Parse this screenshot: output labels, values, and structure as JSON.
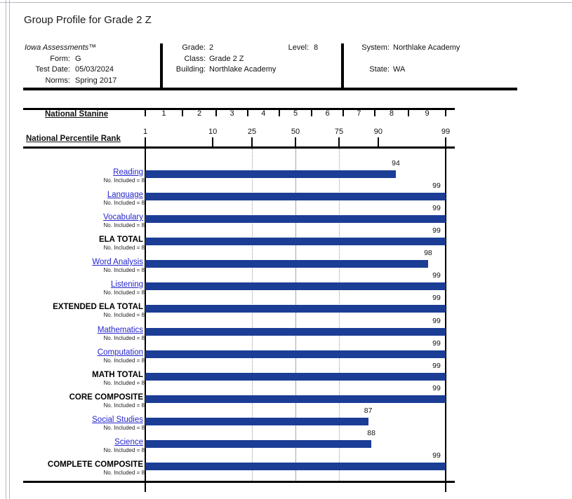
{
  "title": "Group Profile for Grade 2 Z",
  "info": {
    "product": "Iowa Assessments™",
    "form_label": "Form:",
    "form_value": "G",
    "test_date_label": "Test Date:",
    "test_date_value": "05/03/2024",
    "norms_label": "Norms:",
    "norms_value": "Spring 2017",
    "grade_label": "Grade:",
    "grade_value": "2",
    "level_label": "Level:",
    "level_value": "8",
    "class_label": "Class:",
    "class_value": "Grade 2 Z",
    "building_label": "Building:",
    "building_value": "Northlake Academy",
    "system_label": "System:",
    "system_value": "Northlake Academy",
    "state_label": "State:",
    "state_value": "WA"
  },
  "scales": {
    "stanine_label": "National Stanine",
    "stanine_numbers": [
      1,
      2,
      3,
      4,
      5,
      6,
      7,
      8,
      9
    ],
    "stanine_tick_percentiles": [
      1,
      4,
      11,
      23,
      40,
      60,
      77,
      89,
      96,
      99
    ],
    "percentile_label": "National Percentile Rank",
    "percentile_ticks": [
      1,
      10,
      25,
      50,
      75,
      90,
      99
    ]
  },
  "gridlines": [
    {
      "p": 25,
      "style": "dotted"
    },
    {
      "p": 50,
      "style": "solid"
    },
    {
      "p": 75,
      "style": "dotted"
    }
  ],
  "colors": {
    "bar": "#1b3d96",
    "link": "#2525cc",
    "grid": "#999999"
  },
  "chart_data": {
    "type": "bar",
    "orientation": "horizontal",
    "title": "Group Profile for Grade 2 Z",
    "xlabel": "National Percentile Rank",
    "x_scale": "normal-probability (probit)",
    "x_ticks": [
      1,
      10,
      25,
      50,
      75,
      90,
      99
    ],
    "xlim": [
      1,
      99
    ],
    "stanine_boundaries_percentile": [
      1,
      4,
      11,
      23,
      40,
      60,
      77,
      89,
      96,
      99
    ],
    "included_prefix": "No. Included = ",
    "categories": [
      "Reading",
      "Language",
      "Vocabulary",
      "ELA TOTAL",
      "Word Analysis",
      "Listening",
      "EXTENDED ELA TOTAL",
      "Mathematics",
      "Computation",
      "MATH TOTAL",
      "CORE COMPOSITE",
      "Social Studies",
      "Science",
      "COMPLETE COMPOSITE"
    ],
    "values": [
      94,
      99,
      99,
      99,
      98,
      99,
      99,
      99,
      99,
      99,
      99,
      87,
      88,
      99
    ],
    "n_included": [
      8,
      8,
      8,
      8,
      8,
      8,
      8,
      8,
      8,
      8,
      8,
      8,
      8,
      8
    ],
    "is_link": [
      true,
      true,
      true,
      false,
      true,
      true,
      false,
      true,
      true,
      false,
      false,
      true,
      true,
      false
    ]
  }
}
